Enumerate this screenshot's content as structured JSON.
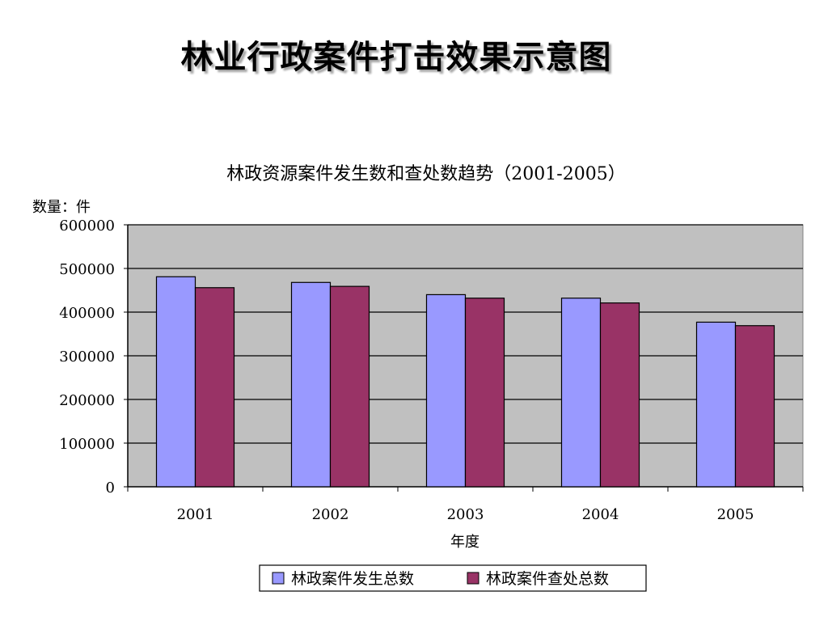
{
  "slide": {
    "title": "林业行政案件打击效果示意图"
  },
  "chart_data": {
    "type": "bar",
    "title": "林政资源案件发生数和查处数趋势（2001-2005）",
    "ylabel": "数量：件",
    "xlabel": "年度",
    "categories": [
      "2001",
      "2002",
      "2003",
      "2004",
      "2005"
    ],
    "series": [
      {
        "name": "林政案件发生总数",
        "values": [
          481000,
          468000,
          440000,
          432000,
          377000
        ],
        "color": "#9999ff"
      },
      {
        "name": "林政案件查处总数",
        "values": [
          456000,
          459000,
          432000,
          421000,
          369000
        ],
        "color": "#993366"
      }
    ],
    "ylim": [
      0,
      600000
    ],
    "yticks": [
      "0",
      "100000",
      "200000",
      "300000",
      "400000",
      "500000",
      "600000"
    ],
    "grid": true,
    "plot_background": "#c0c0c0",
    "legend_position": "bottom"
  }
}
